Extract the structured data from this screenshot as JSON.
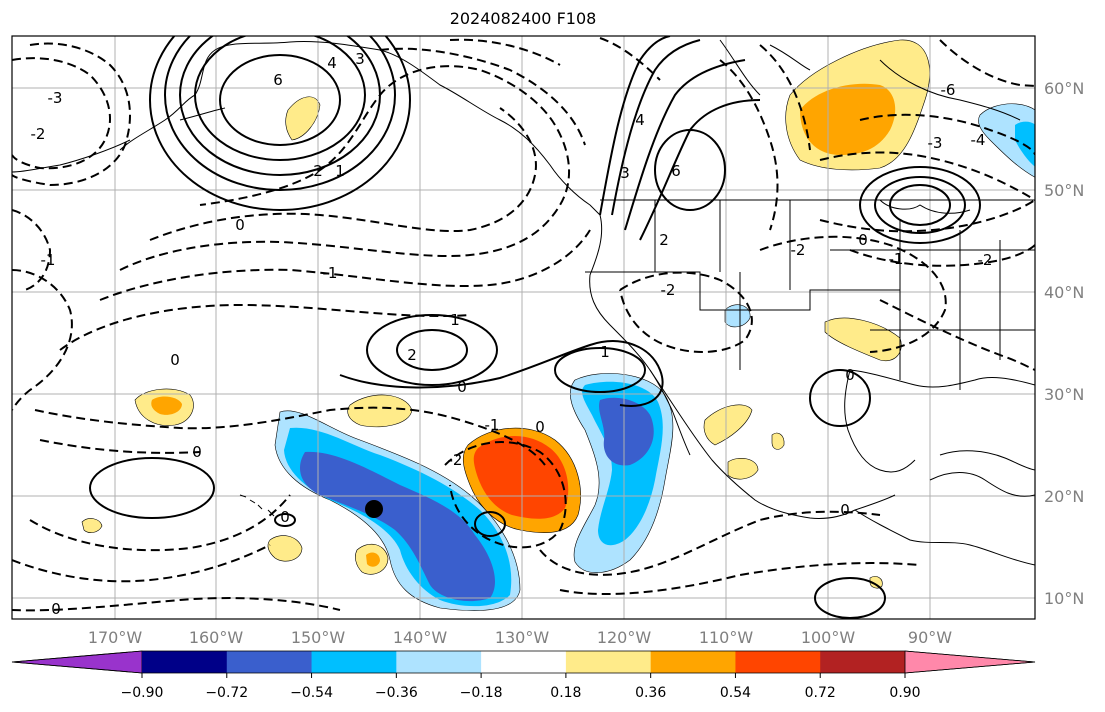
{
  "title": "2024082400 F108",
  "lat_labels": [
    "60°N",
    "50°N",
    "40°N",
    "30°N",
    "20°N",
    "10°N"
  ],
  "lon_labels": [
    "170°W",
    "160°W",
    "150°W",
    "140°W",
    "130°W",
    "120°W",
    "110°W",
    "100°W",
    "90°W"
  ],
  "colorbar": {
    "ticks": [
      "−0.90",
      "−0.72",
      "−0.54",
      "−0.36",
      "−0.18",
      "0.18",
      "0.36",
      "0.54",
      "0.72",
      "0.90"
    ],
    "colors": [
      "#9933cc",
      "#000088",
      "#3a5fcd",
      "#00bfff",
      "#aee3ff",
      "#ffffff",
      "#ffeb8a",
      "#ffa500",
      "#ff4500",
      "#b22222",
      "#ff88aa"
    ]
  },
  "contour_labels": [
    "6",
    "4",
    "3",
    "2",
    "1",
    "0",
    "-1",
    "-2",
    "-3",
    "-4",
    "-6"
  ],
  "marker": "storm-center-dot"
}
